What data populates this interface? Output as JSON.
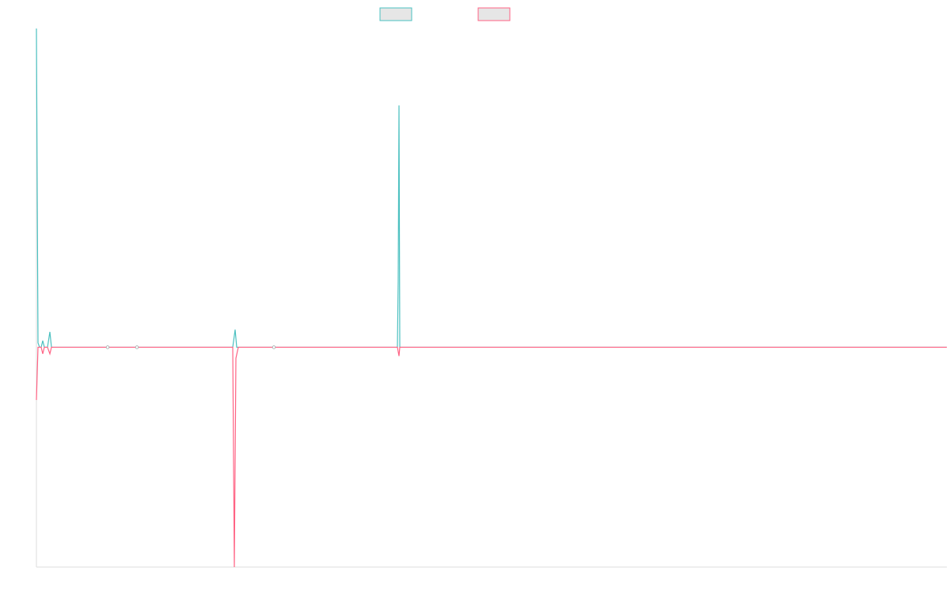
{
  "chart_data": {
    "type": "line",
    "title": "",
    "xlabel": "",
    "ylabel": "",
    "legend": {
      "placement": "top-center",
      "show_labels": false
    },
    "x_range": [
      0,
      1150
    ],
    "ylim": [
      -100,
      145
    ],
    "grid": false,
    "series": [
      {
        "color": "#4bc0c0",
        "fill": "#e6e6e6",
        "x": [
          0,
          2,
          4,
          6,
          8,
          10,
          12,
          14,
          17,
          19,
          21,
          23,
          90,
          92,
          127,
          129,
          131,
          248,
          251,
          253,
          255,
          300,
          302,
          456,
          457,
          458,
          459,
          461,
          463,
          1150
        ],
        "y": [
          145,
          2,
          0,
          0,
          3,
          0,
          0,
          0,
          7,
          0,
          0,
          0,
          0,
          0,
          0,
          0,
          0,
          0,
          8,
          0,
          0,
          0,
          0,
          0,
          30,
          110,
          0,
          0,
          0,
          0
        ]
      },
      {
        "color": "#ff6384",
        "fill": "#e6e6e6",
        "x": [
          0,
          2,
          4,
          6,
          8,
          10,
          12,
          14,
          17,
          19,
          21,
          23,
          90,
          92,
          127,
          129,
          131,
          248,
          250,
          252,
          255,
          300,
          302,
          456,
          458,
          459,
          461,
          463,
          1150
        ],
        "y": [
          -24,
          0,
          0,
          0,
          -3,
          0,
          0,
          0,
          -3,
          0,
          0,
          0,
          0,
          0,
          0,
          0,
          0,
          0,
          -100,
          -5,
          0,
          0,
          0,
          0,
          -4,
          0,
          0,
          0,
          0
        ]
      }
    ]
  }
}
